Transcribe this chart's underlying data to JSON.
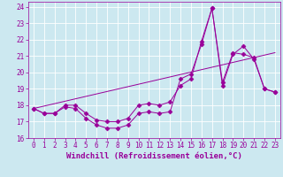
{
  "xlabel": "Windchill (Refroidissement éolien,°C)",
  "xlim": [
    -0.5,
    23.5
  ],
  "ylim": [
    16,
    24.3
  ],
  "yticks": [
    16,
    17,
    18,
    19,
    20,
    21,
    22,
    23,
    24
  ],
  "xticks": [
    0,
    1,
    2,
    3,
    4,
    5,
    6,
    7,
    8,
    9,
    10,
    11,
    12,
    13,
    14,
    15,
    16,
    17,
    18,
    19,
    20,
    21,
    22,
    23
  ],
  "background_color": "#cce8f0",
  "grid_color": "#ffffff",
  "line_color": "#990099",
  "line1_y": [
    17.8,
    17.5,
    17.5,
    17.9,
    17.8,
    17.2,
    16.8,
    16.6,
    16.6,
    16.8,
    17.5,
    17.6,
    17.5,
    17.6,
    19.6,
    19.9,
    21.7,
    23.9,
    19.2,
    21.1,
    21.6,
    20.8,
    19.0,
    18.8
  ],
  "line2_y": [
    17.8,
    17.5,
    17.5,
    18.0,
    18.0,
    17.5,
    17.1,
    17.0,
    17.0,
    17.2,
    18.0,
    18.1,
    18.0,
    18.2,
    19.2,
    19.6,
    21.9,
    23.9,
    19.4,
    21.2,
    21.1,
    20.9,
    19.0,
    18.8
  ],
  "ref_line_x": [
    0,
    23
  ],
  "ref_line_y": [
    17.8,
    21.2
  ],
  "font_size": 5.5,
  "xlabel_font_size": 6.5,
  "linewidth": 0.7,
  "marker_size": 2.5
}
